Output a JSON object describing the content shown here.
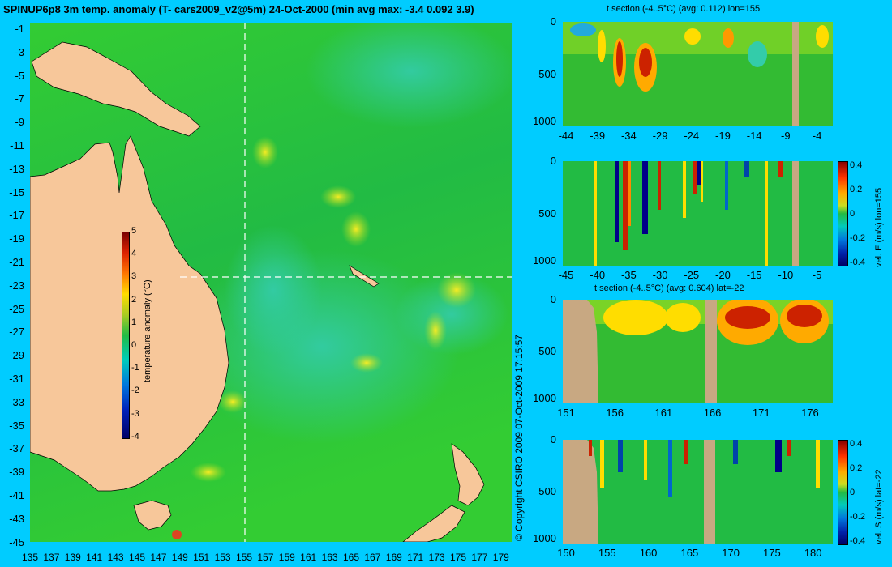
{
  "header": {
    "title": "SPINUP6p8 3m temp. anomaly (T- cars2009_v2@5m) 24-Oct-2000 (min avg max: -3.4 0.092 3.9)"
  },
  "map": {
    "lat_labels": [
      "-1",
      "-3",
      "-5",
      "-7",
      "-9",
      "-11",
      "-13",
      "-15",
      "-17",
      "-19",
      "-21",
      "-23",
      "-25",
      "-27",
      "-29",
      "-31",
      "-33",
      "-35",
      "-37",
      "-39",
      "-41",
      "-43",
      "-45"
    ],
    "lon_labels": [
      "135",
      "137",
      "139",
      "141",
      "143",
      "145",
      "147",
      "149",
      "151",
      "153",
      "155",
      "157",
      "159",
      "161",
      "163",
      "165",
      "167",
      "169",
      "171",
      "173",
      "175",
      "177",
      "179"
    ],
    "colorbar": {
      "ticks": [
        "5",
        "4",
        "3",
        "2",
        "1",
        "0",
        "-1",
        "-2",
        "-3",
        "-4"
      ],
      "label": "temperature anomaly (°C)"
    },
    "section_markers": {
      "lon": 155,
      "lat": -22
    },
    "colors": {
      "land": "#f7c79a",
      "ocean": "#22bb33"
    }
  },
  "copyright": "© Copyright CSIRO 2009   07-Oct-2009 17:15:57",
  "panels": {
    "t_lon": {
      "title": "t section (-4..5°C) (avg: 0.112) lon=155",
      "x_ticks": [
        "-44",
        "-39",
        "-34",
        "-29",
        "-24",
        "-19",
        "-14",
        "-9",
        "-4"
      ],
      "y_ticks": [
        "0",
        "500",
        "1000"
      ]
    },
    "v_lon": {
      "x_ticks": [
        "-45",
        "-40",
        "-35",
        "-30",
        "-25",
        "-20",
        "-15",
        "-10",
        "-5"
      ],
      "y_ticks": [
        "0",
        "500",
        "1000"
      ],
      "cbar_ticks": [
        "0.4",
        "0.2",
        "0",
        "-0.2",
        "-0.4"
      ],
      "cbar_label": "vel. E (m/s) lon=155"
    },
    "t_lat": {
      "title": "t section (-4..5°C) (avg: 0.604) lat=-22",
      "x_ticks": [
        "151",
        "156",
        "161",
        "166",
        "171",
        "176"
      ],
      "y_ticks": [
        "0",
        "500",
        "1000"
      ]
    },
    "v_lat": {
      "x_ticks": [
        "150",
        "155",
        "160",
        "165",
        "170",
        "175",
        "180"
      ],
      "y_ticks": [
        "0",
        "500",
        "1000"
      ],
      "cbar_ticks": [
        "0.4",
        "0.2",
        "0",
        "-0.2",
        "-0.4"
      ],
      "cbar_label": "vel. S (m/s) lat=-22"
    }
  }
}
